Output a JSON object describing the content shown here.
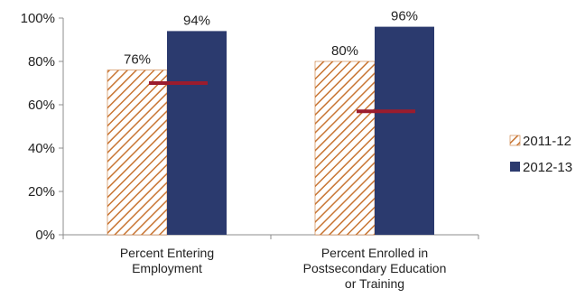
{
  "chart_data": {
    "type": "bar",
    "title": "",
    "xlabel": "",
    "ylabel": "",
    "ylim": [
      0,
      100
    ],
    "yticks": [
      0,
      20,
      40,
      60,
      80,
      100
    ],
    "ytick_labels": [
      "0%",
      "20%",
      "40%",
      "60%",
      "80%",
      "100%"
    ],
    "categories": [
      [
        "Percent Entering",
        "Employment"
      ],
      [
        "Percent Enrolled in",
        "Postsecondary Education",
        "or Training"
      ]
    ],
    "series": [
      {
        "name": "2011-12",
        "values": [
          76,
          80
        ],
        "labels": [
          "76%",
          "80%"
        ],
        "color": "#c87533",
        "fill": "hatched"
      },
      {
        "name": "2012-13",
        "values": [
          94,
          96
        ],
        "labels": [
          "94%",
          "96%"
        ],
        "color": "#2b3a6e",
        "fill": "solid"
      }
    ],
    "target_markers": {
      "values": [
        70,
        57
      ],
      "color": "#9b1c2e"
    },
    "grid": false,
    "legend": {
      "position": "right"
    }
  }
}
